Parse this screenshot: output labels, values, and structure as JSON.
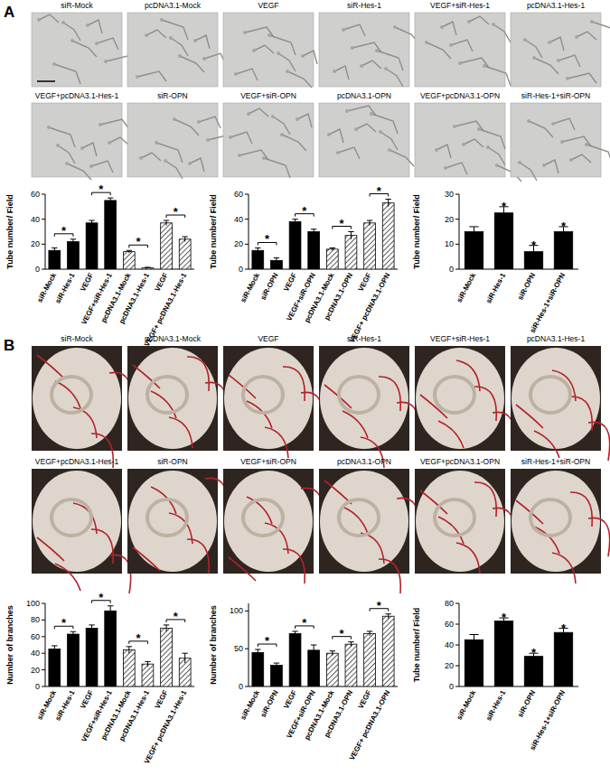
{
  "panels": [
    {
      "label": "A",
      "images": [
        "siR-Mock",
        "pcDNA3.1-Mock",
        "VEGF",
        "siR-Hes-1",
        "VEGF+siR-Hes-1",
        "pcDNA3.1-Hes-1",
        "VEGF+pcDNA3.1-Hes-1",
        "siR-OPN",
        "VEGF+siR-OPN",
        "pcDNA3.1-OPN",
        "VEGF+pcDNA3.1-OPN",
        "siR-Hes-1+siR-OPN"
      ]
    },
    {
      "label": "B",
      "images": [
        "siR-Mock",
        "pcDNA3.1-Mock",
        "VEGF",
        "siR-Hes-1",
        "VEGF+siR-Hes-1",
        "pcDNA3.1-Hes-1",
        "VEGF+pcDNA3.1-Hes-1",
        "siR-OPN",
        "VEGF+siR-OPN",
        "pcDNA3.1-OPN",
        "VEGF+pcDNA3.1-OPN",
        "siR-Hes-1+siR-OPN"
      ]
    }
  ],
  "chart_data": [
    {
      "type": "bar",
      "ylabel": "Tube number/ Field",
      "categories": [
        "siR-Mock",
        "siR-Hes-1",
        "VEGF",
        "VEGF+siR-Hes-1",
        "pcDNA3.1-Mock",
        "pcDNA3.1-Hes-1",
        "VEGF",
        "VEGF+ pcDNA3.1-Hes-1"
      ],
      "values": [
        15,
        22,
        37,
        55,
        14,
        1,
        37,
        24
      ],
      "errors": [
        2,
        2,
        2,
        2,
        1,
        0.5,
        2,
        2
      ],
      "colors": [
        "#000000",
        "#000000",
        "#000000",
        "#000000",
        "#ffffff",
        "#ffffff",
        "#ffffff",
        "#ffffff"
      ],
      "ylim": [
        0,
        60
      ],
      "yticks": [
        0,
        20,
        40,
        60
      ],
      "annotations": [
        {
          "text": "*",
          "categories": [
            0,
            1
          ]
        },
        {
          "text": "*",
          "categories": [
            2,
            3
          ]
        },
        {
          "text": "*",
          "categories": [
            4,
            5
          ]
        },
        {
          "text": "*",
          "categories": [
            6,
            7
          ]
        }
      ]
    },
    {
      "type": "bar",
      "ylabel": "Tube number/ Field",
      "categories": [
        "siR-Mock",
        "siR-OPN",
        "VEGF",
        "VEGF+siR-OPN",
        "pcDNA3.1-Mock",
        "pcDNA3.1-OPN",
        "VEGF",
        "VEGF+ pcDNA3.1-OPN"
      ],
      "values": [
        15,
        7,
        38,
        30,
        16,
        27,
        37,
        53
      ],
      "errors": [
        2,
        2,
        2,
        2,
        1,
        3,
        2,
        3
      ],
      "colors": [
        "#000000",
        "#000000",
        "#000000",
        "#000000",
        "#ffffff",
        "#ffffff",
        "#ffffff",
        "#ffffff"
      ],
      "ylim": [
        0,
        60
      ],
      "yticks": [
        0,
        20,
        40,
        60
      ],
      "annotations": [
        {
          "text": "*",
          "categories": [
            0,
            1
          ]
        },
        {
          "text": "*",
          "categories": [
            2,
            3
          ]
        },
        {
          "text": "*",
          "categories": [
            4,
            5
          ]
        },
        {
          "text": "*",
          "categories": [
            6,
            7
          ]
        }
      ]
    },
    {
      "type": "bar",
      "ylabel": "Tube number/ Field",
      "categories": [
        "siR-Mock",
        "siR-Hes-1",
        "siR-OPN",
        "siR-Hes-1+siR-OPN"
      ],
      "values": [
        15,
        22.5,
        7,
        15
      ],
      "errors": [
        2,
        2.5,
        2.5,
        2
      ],
      "colors": [
        "#000000",
        "#000000",
        "#000000",
        "#000000"
      ],
      "ylim": [
        0,
        30
      ],
      "yticks": [
        0,
        10,
        20,
        30
      ],
      "annotations": [
        {
          "text": "*",
          "categories": [
            1
          ]
        },
        {
          "text": "*",
          "categories": [
            2
          ]
        },
        {
          "text": "*",
          "categories": [
            3
          ]
        }
      ]
    },
    {
      "type": "bar",
      "ylabel": "Number of branches",
      "categories": [
        "siR-Mock",
        "siR-Hes-1",
        "VEGF",
        "VEGF+siR-Hes-1",
        "pcDNA3.1-Mock",
        "pcDNA3.1-Hes-1",
        "VEGF",
        "VEGF+ pcDNA3.1-Hes-1"
      ],
      "values": [
        45,
        63,
        70,
        91,
        44,
        27,
        70,
        34
      ],
      "errors": [
        4,
        3,
        4,
        6,
        4,
        3,
        4,
        6
      ],
      "colors": [
        "#000000",
        "#000000",
        "#000000",
        "#000000",
        "#ffffff",
        "#ffffff",
        "#ffffff",
        "#ffffff"
      ],
      "ylim": [
        0,
        100
      ],
      "yticks": [
        0,
        20,
        40,
        60,
        80,
        100
      ],
      "annotations": [
        {
          "text": "*",
          "categories": [
            0,
            1
          ]
        },
        {
          "text": "*",
          "categories": [
            2,
            3
          ]
        },
        {
          "text": "*",
          "categories": [
            4,
            5
          ]
        },
        {
          "text": "*",
          "categories": [
            6,
            7
          ]
        }
      ]
    },
    {
      "type": "bar",
      "ylabel": "Number of branches",
      "categories": [
        "siR-Mock",
        "siR-OPN",
        "VEGF",
        "VEGF+siR-OPN",
        "pcDNA3.1-Mock",
        "pcDNA3.1-OPN",
        "VEGF",
        "VEGF+ pcDNA3.1-OPN"
      ],
      "values": [
        45,
        28,
        70,
        48,
        44,
        56,
        70,
        93
      ],
      "errors": [
        4,
        3,
        3,
        7,
        3,
        3,
        3,
        3
      ],
      "colors": [
        "#000000",
        "#000000",
        "#000000",
        "#000000",
        "#ffffff",
        "#ffffff",
        "#ffffff",
        "#ffffff"
      ],
      "ylim": [
        0,
        110
      ],
      "yticks": [
        0,
        50,
        100
      ],
      "annotations": [
        {
          "text": "*",
          "categories": [
            0,
            1
          ]
        },
        {
          "text": "*",
          "categories": [
            2,
            3
          ]
        },
        {
          "text": "*",
          "categories": [
            4,
            5
          ]
        },
        {
          "text": "*",
          "categories": [
            6,
            7
          ]
        }
      ]
    },
    {
      "type": "bar",
      "ylabel": "Tube number/ Field",
      "categories": [
        "siR-Mock",
        "siR-Hes-1",
        "siR-OPN",
        "siR-Hes-1+siR-OPN"
      ],
      "values": [
        45,
        63,
        29,
        52
      ],
      "errors": [
        5,
        3,
        3,
        4
      ],
      "colors": [
        "#000000",
        "#000000",
        "#000000",
        "#000000"
      ],
      "ylim": [
        0,
        80
      ],
      "yticks": [
        0,
        20,
        40,
        60,
        80
      ],
      "annotations": [
        {
          "text": "*",
          "categories": [
            1
          ]
        },
        {
          "text": "*",
          "categories": [
            2
          ]
        },
        {
          "text": "*",
          "categories": [
            3
          ]
        }
      ]
    }
  ]
}
